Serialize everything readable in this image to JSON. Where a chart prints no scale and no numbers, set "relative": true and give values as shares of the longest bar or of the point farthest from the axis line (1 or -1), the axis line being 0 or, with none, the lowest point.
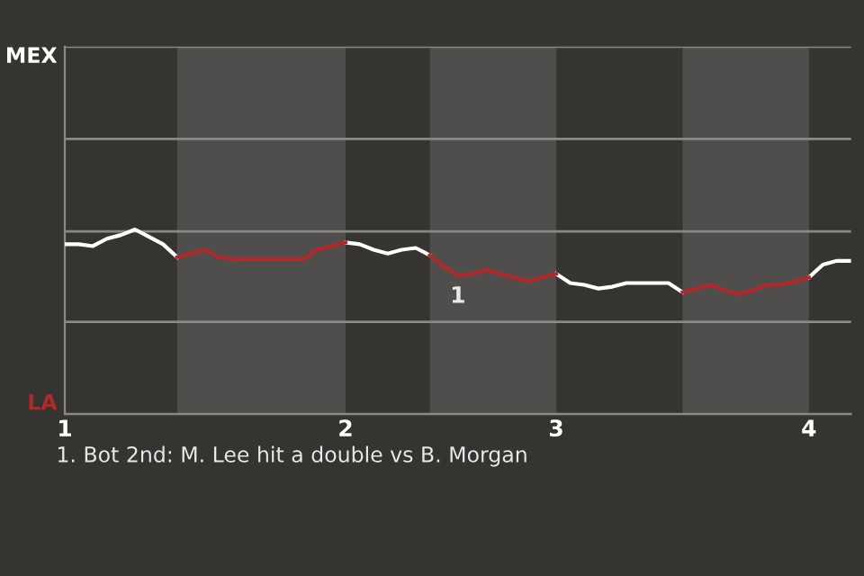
{
  "chart_data": {
    "type": "line",
    "categories": [
      "1",
      null,
      null,
      null,
      null,
      null,
      null,
      null,
      null,
      null,
      null,
      null,
      null,
      null,
      null,
      null,
      null,
      null,
      null,
      null,
      "2",
      null,
      null,
      null,
      null,
      null,
      null,
      null,
      null,
      null,
      null,
      null,
      null,
      null,
      null,
      "3",
      null,
      null,
      null,
      null,
      null,
      null,
      null,
      null,
      null,
      null,
      null,
      null,
      null,
      null,
      null,
      null,
      null,
      "4",
      null,
      null,
      null
    ],
    "relative": true,
    "series": [
      {
        "color": "#ffffff",
        "values": [
          0.92,
          0.92,
          0.91,
          0.95,
          0.97,
          1,
          0.96,
          0.92,
          0.85,
          null,
          null,
          null,
          null,
          null,
          null,
          null,
          null,
          null,
          null,
          null,
          0.93,
          0.92,
          0.89,
          0.87,
          0.89,
          0.9,
          0.86,
          null,
          null,
          null,
          null,
          null,
          null,
          null,
          null,
          0.76,
          0.71,
          0.7,
          0.68,
          0.69,
          0.71,
          0.71,
          0.71,
          0.71,
          0.66,
          null,
          null,
          null,
          null,
          null,
          null,
          null,
          null,
          0.74,
          0.81,
          0.83,
          0.83
        ]
      },
      {
        "color": "#b3282b",
        "values": [
          null,
          null,
          null,
          null,
          null,
          null,
          null,
          null,
          0.85,
          0.87,
          0.89,
          0.85,
          0.84,
          0.84,
          0.84,
          0.84,
          0.84,
          0.84,
          0.89,
          0.91,
          0.93,
          null,
          null,
          null,
          null,
          null,
          0.86,
          0.8,
          0.75,
          0.76,
          0.78,
          0.76,
          0.74,
          0.72,
          0.74,
          0.76,
          null,
          null,
          null,
          null,
          null,
          null,
          null,
          null,
          0.66,
          0.68,
          0.7,
          0.67,
          0.65,
          0.67,
          0.7,
          0.7,
          0.72,
          0.74,
          null,
          null,
          null
        ]
      }
    ],
    "ref_lines": [
      {
        "axis": "y",
        "value": 0,
        "label": "LA",
        "color": "#8a8886"
      },
      {
        "axis": "y",
        "value": 0.5,
        "color": "#8a8886"
      },
      {
        "axis": "y",
        "value": 0.99,
        "color": "#8a8886"
      },
      {
        "axis": "y",
        "value": 1.49,
        "color": "#8a8886"
      },
      {
        "axis": "y",
        "value": 1.99,
        "label": "MEX",
        "color": "#8a8886"
      }
    ],
    "annotations": [
      {
        "text": "1",
        "y": 0.75
      },
      "1. Bot 2nd: M. Lee hit a double vs B. Morgan"
    ],
    "marker": "none",
    "line_style": "solid"
  }
}
